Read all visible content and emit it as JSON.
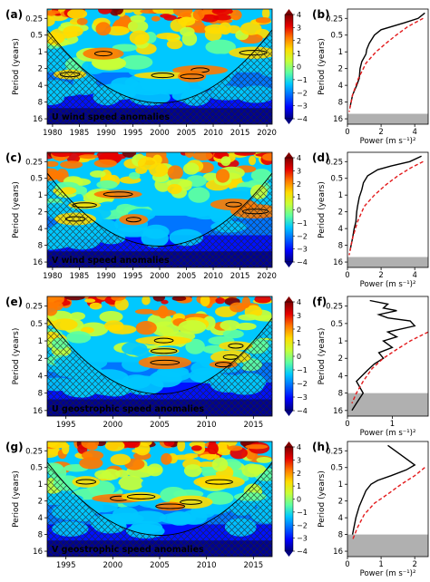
{
  "colors": {
    "scale": [
      "#00007f",
      "#0000ff",
      "#0066ff",
      "#00c8ff",
      "#5fffa0",
      "#c8ff37",
      "#ffdc00",
      "#ff7800",
      "#e60000",
      "#7f0000"
    ],
    "significance_contour": "#000000",
    "global_wavelet": "#000000",
    "red_noise": "#e31a1c",
    "cone_hatch": "#222222",
    "shade": "#b0b0b0"
  },
  "colorbar_ticks": [
    "−4",
    "−3",
    "−2",
    "−1",
    "0",
    "1",
    "2",
    "3",
    "4"
  ],
  "chart_data": [
    {
      "panel": "(a)",
      "type": "heatmap",
      "annotation": "U wind speed anomalies",
      "ylabel": "Period (years)",
      "yticks": [
        "0.25",
        "0.5",
        "1",
        "2",
        "4",
        "8",
        "16"
      ],
      "xticks": [
        "1980",
        "1985",
        "1990",
        "1995",
        "2000",
        "2005",
        "2010",
        "2015",
        "2020"
      ],
      "xlim": [
        1979,
        2021
      ],
      "ylim_period": [
        0.17,
        20
      ],
      "colorbar_range": [
        -4,
        4
      ]
    },
    {
      "panel": "(b)",
      "type": "line",
      "xlabel": "Power (m s⁻¹)²",
      "xticks": [
        "0",
        "2",
        "4"
      ],
      "xlim": [
        0,
        4.8
      ],
      "shade_below_period": 13,
      "series": [
        {
          "style": "solid",
          "power": [
            4.6,
            4.2,
            3.4,
            2.0,
            1.6,
            1.3,
            1.15,
            1.1,
            0.85,
            0.75,
            0.7,
            0.55,
            0.3,
            0.15
          ],
          "period": [
            0.2,
            0.25,
            0.3,
            0.4,
            0.5,
            0.7,
            0.9,
            1.1,
            1.5,
            2.0,
            3.0,
            4.0,
            6.0,
            10.0
          ]
        },
        {
          "style": "dashed",
          "power": [
            4.5,
            3.6,
            2.9,
            2.3,
            1.7,
            1.1,
            0.65,
            0.3,
            0.1
          ],
          "period": [
            0.25,
            0.35,
            0.5,
            0.7,
            1.0,
            1.6,
            3.0,
            6.0,
            12.0
          ]
        }
      ]
    },
    {
      "panel": "(c)",
      "type": "heatmap",
      "annotation": "V wind speed anomalies",
      "ylabel": "Period (years)",
      "yticks": [
        "0.25",
        "0.5",
        "1",
        "2",
        "4",
        "8",
        "16"
      ],
      "xticks": [
        "1980",
        "1985",
        "1990",
        "1995",
        "2000",
        "2005",
        "2010",
        "2015",
        "2020"
      ],
      "xlim": [
        1979,
        2021
      ],
      "ylim_period": [
        0.17,
        20
      ],
      "colorbar_range": [
        -4,
        4
      ]
    },
    {
      "panel": "(d)",
      "type": "line",
      "xlabel": "Power (m s⁻¹)²",
      "xticks": [
        "0",
        "2",
        "4"
      ],
      "xlim": [
        0,
        4.8
      ],
      "shade_below_period": 13,
      "series": [
        {
          "style": "solid",
          "power": [
            4.4,
            3.7,
            2.6,
            1.8,
            1.2,
            0.95,
            0.85,
            0.7,
            0.6,
            0.55,
            0.5,
            0.4,
            0.3,
            0.15
          ],
          "period": [
            0.2,
            0.25,
            0.3,
            0.35,
            0.45,
            0.6,
            0.8,
            1.1,
            1.6,
            2.0,
            3.0,
            4.0,
            6.0,
            10.0
          ]
        },
        {
          "style": "dashed",
          "power": [
            4.5,
            3.8,
            3.0,
            2.3,
            1.6,
            1.0,
            0.6,
            0.3,
            0.1
          ],
          "period": [
            0.25,
            0.32,
            0.45,
            0.65,
            1.0,
            1.6,
            3.0,
            6.0,
            12.0
          ]
        }
      ]
    },
    {
      "panel": "(e)",
      "type": "heatmap",
      "annotation": "U geostrophic speed anomalies",
      "ylabel": "Period (years)",
      "yticks": [
        "0.25",
        "0.5",
        "1",
        "2",
        "4",
        "8",
        "16"
      ],
      "xticks": [
        "1995",
        "2000",
        "2005",
        "2010",
        "2015"
      ],
      "xlim": [
        1993,
        2017
      ],
      "ylim_period": [
        0.17,
        20
      ],
      "colorbar_range": [
        -4,
        4
      ]
    },
    {
      "panel": "(f)",
      "type": "line",
      "xlabel": "Power (m s⁻¹)²",
      "xticks": [
        "0",
        "1"
      ],
      "xlim": [
        0,
        1.8
      ],
      "shade_below_period": 8,
      "series": [
        {
          "style": "solid",
          "power": [
            0.5,
            0.9,
            0.8,
            1.1,
            0.7,
            0.9,
            1.4,
            1.5,
            0.9,
            1.1,
            0.8,
            1.0,
            0.7,
            0.8,
            0.6,
            0.45,
            0.2,
            0.35,
            0.2,
            0.1
          ],
          "period": [
            0.2,
            0.23,
            0.27,
            0.3,
            0.35,
            0.4,
            0.45,
            0.55,
            0.7,
            0.85,
            1.0,
            1.3,
            1.6,
            2.0,
            2.5,
            3.2,
            5.0,
            8.0,
            12.0,
            16.0
          ]
        },
        {
          "style": "dashed",
          "power": [
            1.8,
            1.4,
            1.1,
            0.8,
            0.55,
            0.35,
            0.2,
            0.1
          ],
          "period": [
            0.7,
            1.0,
            1.4,
            2.0,
            3.0,
            5.0,
            8.0,
            12.0
          ]
        }
      ]
    },
    {
      "panel": "(g)",
      "type": "heatmap",
      "annotation": "V geostrophic speed anomalies",
      "ylabel": "Period (years)",
      "yticks": [
        "0.25",
        "0.5",
        "1",
        "2",
        "4",
        "8",
        "16"
      ],
      "xticks": [
        "1995",
        "2000",
        "2005",
        "2010",
        "2015"
      ],
      "xlim": [
        1993,
        2017
      ],
      "ylim_period": [
        0.17,
        20
      ],
      "colorbar_range": [
        -4,
        4
      ]
    },
    {
      "panel": "(h)",
      "type": "line",
      "xlabel": "Power (m s⁻¹)²",
      "xticks": [
        "0",
        "1",
        "2"
      ],
      "xlim": [
        0,
        2.4
      ],
      "shade_below_period": 8,
      "series": [
        {
          "style": "solid",
          "power": [
            1.2,
            1.6,
            2.0,
            1.75,
            1.3,
            0.9,
            0.7,
            0.55,
            0.45,
            0.35,
            0.25,
            0.15
          ],
          "period": [
            0.2,
            0.3,
            0.45,
            0.55,
            0.7,
            0.85,
            1.0,
            1.3,
            1.8,
            2.5,
            4.0,
            8.0
          ]
        },
        {
          "style": "dashed",
          "power": [
            2.3,
            2.0,
            1.6,
            1.2,
            0.8,
            0.5,
            0.3,
            0.15
          ],
          "period": [
            0.5,
            0.7,
            1.0,
            1.5,
            2.2,
            3.5,
            6.0,
            10.0
          ]
        }
      ]
    }
  ]
}
